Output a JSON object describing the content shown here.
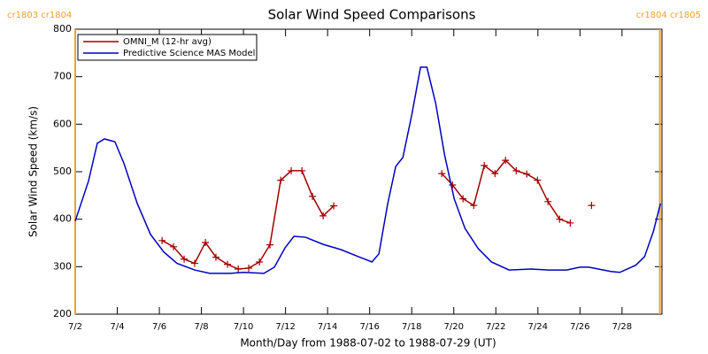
{
  "chart_data": {
    "type": "line",
    "title": "Solar Wind Speed Comparisons",
    "xlabel": "Month/Day from 1988-07-02 to 1988-07-29 (UT)",
    "ylabel": "Solar Wind Speed (km/s)",
    "xlim": [
      2,
      29.9
    ],
    "ylim": [
      200,
      800
    ],
    "xticks": [
      {
        "value": 2,
        "label": "7/2"
      },
      {
        "value": 4,
        "label": "7/4"
      },
      {
        "value": 6,
        "label": "7/6"
      },
      {
        "value": 8,
        "label": "7/8"
      },
      {
        "value": 10,
        "label": "7/10"
      },
      {
        "value": 12,
        "label": "7/12"
      },
      {
        "value": 14,
        "label": "7/14"
      },
      {
        "value": 16,
        "label": "7/16"
      },
      {
        "value": 18,
        "label": "7/18"
      },
      {
        "value": 20,
        "label": "7/20"
      },
      {
        "value": 22,
        "label": "7/22"
      },
      {
        "value": 24,
        "label": "7/24"
      },
      {
        "value": 26,
        "label": "7/26"
      },
      {
        "value": 28,
        "label": "7/28"
      }
    ],
    "yticks": [
      200,
      300,
      400,
      500,
      600,
      700,
      800
    ],
    "legend": "upper left",
    "annotations": [
      {
        "text": "cr1803 cr1804",
        "x": 2,
        "color": "#f0a030"
      },
      {
        "text": "cr1804 cr1805",
        "x": 29.8,
        "color": "#f0a030"
      }
    ],
    "series": [
      {
        "name": "OMNI_M (12-hr avg)",
        "color": "#a00000",
        "marker": "+",
        "x": [
          6.13,
          6.67,
          7.18,
          7.68,
          8.19,
          8.69,
          9.24,
          9.75,
          10.25,
          10.76,
          11.26,
          11.77,
          12.27,
          12.78,
          13.28,
          13.79,
          14.29,
          null,
          19.43,
          19.94,
          20.44,
          20.95,
          21.45,
          21.96,
          22.46,
          22.97,
          23.47,
          23.98,
          24.48,
          25.03,
          25.54,
          null,
          26.55
        ],
        "values": [
          355,
          342,
          316,
          307,
          351,
          320,
          305,
          295,
          297,
          310,
          346,
          482,
          502,
          502,
          448,
          407,
          428,
          null,
          496,
          472,
          443,
          429,
          513,
          496,
          524,
          502,
          495,
          482,
          437,
          400,
          392,
          null,
          429
        ]
      },
      {
        "name": "Predictive Science MAS Model",
        "color": "#0000c0",
        "x": [
          2,
          2.63,
          3.05,
          3.39,
          3.89,
          4.32,
          4.95,
          5.58,
          6.21,
          6.84,
          7.68,
          8.4,
          9.37,
          10.0,
          10.97,
          11.47,
          11.98,
          12.4,
          12.95,
          13.79,
          14.63,
          15.47,
          16.11,
          16.44,
          16.86,
          17.24,
          17.58,
          18.0,
          18.42,
          18.72,
          19.14,
          19.56,
          20.02,
          20.53,
          21.16,
          21.79,
          22.63,
          23.68,
          24.53,
          25.37,
          26.0,
          26.42,
          27.47,
          27.89,
          28.65,
          29.07,
          29.49,
          29.83
        ],
        "values": [
          396,
          480,
          560,
          569,
          563,
          517,
          433,
          368,
          331,
          307,
          293,
          286,
          286,
          288,
          286,
          299,
          340,
          364,
          362,
          347,
          336,
          321,
          310,
          327,
          433,
          511,
          530,
          619,
          720,
          720,
          644,
          536,
          443,
          381,
          338,
          310,
          293,
          295,
          293,
          293,
          299,
          299,
          290,
          288,
          303,
          321,
          374,
          433
        ]
      }
    ]
  }
}
